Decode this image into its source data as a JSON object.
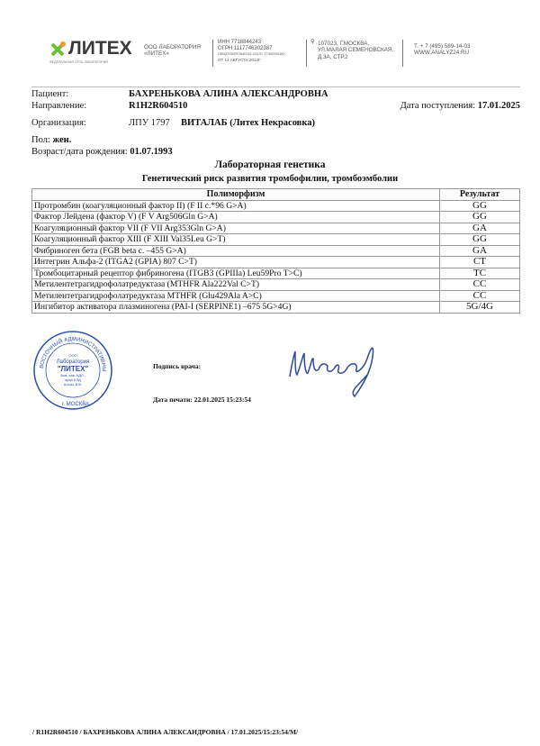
{
  "header": {
    "logo_text": "ЛИТЕХ",
    "logo_tagline": "ФЕДЕРАЛЬНАЯ СЕТЬ ЛАБОРАТОРИЙ",
    "company": [
      "ООО ЛАБОРАТОРИЯ",
      "«ЛИТЕХ»"
    ],
    "registration": [
      "ИНН 7718844243",
      "ОГРН 1117746302387",
      "ЛИЦЕНЗИЯ №ЛО41-01137-77/00294160",
      "ОТ 13 АВГУСТА 2014Г."
    ],
    "address": [
      "107023, Г.МОСКВА,",
      "УЛ.МАЛАЯ СЕМЕНОВСКАЯ,",
      "Д.3А, СТР.2"
    ],
    "contacts": [
      "Т. + 7 (495) 589-14-03",
      "WWW.ANALYZ24.RU"
    ],
    "brand_color": "#6abf3b"
  },
  "patient": {
    "patient_label": "Пациент:",
    "patient_value": "БАХРЕНЬКОВА АЛИНА АЛЕКСАНДРОВНА",
    "referral_label": "Направление:",
    "referral_value": "R1H2R604510",
    "received_label": "Дата поступления:",
    "received_value": "17.01.2025",
    "org_label": "Организация:",
    "org_code": "ЛПУ 1797",
    "org_value": "ВИТАЛАБ (Литех Некрасовка)",
    "sex_label": "Пол:",
    "sex_value": "жен.",
    "dob_label": "Возраст/дата рождения:",
    "dob_value": "01.07.1993"
  },
  "section_title": "Лабораторная генетика",
  "test_title": "Генетический риск развития тромбофилии, тромбоэмболии",
  "table": {
    "headers": [
      "Полиморфизм",
      "Результат"
    ],
    "rows": [
      [
        "Протромбин (коагуляционный фактор II)  (F II c.*96 G>A)",
        "GG"
      ],
      [
        "Фактор Лейдена (фактор V)  (F V Arg506Gln G>A)",
        "GG"
      ],
      [
        "Коагуляционный фактор VII  (F VII Arg353Gln G>A)",
        "GA"
      ],
      [
        "Коагуляционный фактор XIII  (F XIII  Val35Leu G>T)",
        "GG"
      ],
      [
        "Фибриноген бета  (FGB beta c. –455 G>A)",
        "GA"
      ],
      [
        "Интегрин Альфа-2  (ITGA2 (GPIA) 807 C>T)",
        "CT"
      ],
      [
        "Тромбоцитарный рецептор фибриногена (ITGB3 (GPIIIa) Leu59Pro T>C)",
        "TC"
      ],
      [
        "Метилентетрагидрофолатредуктаза  (MTHFR Ala222Val C>T)",
        "CC"
      ],
      [
        "Метилентетрагидрофолатредуктаза MTHFR (Glu429Ala A>C)",
        "CC"
      ],
      [
        "Ингибитор  активатора плазминогена  (PAI-I (SERPINE1) –675 5G>4G)",
        "5G/4G"
      ]
    ]
  },
  "stamp": {
    "text": [
      "ВОСТОЧНЫЙ АДМИНИСТРАТИВНЫЙ ОКРУГ",
      "ООО",
      "Лаборатория",
      "\"ЛИТЕХ\"",
      "Зам. зав. КДЛ -",
      "врач КЛД",
      "Штоко В.В.",
      "г. МОСКВА"
    ],
    "color": "#2a4fa8"
  },
  "signature_label": "Подпись врача:",
  "print_date_label": "Дата печати:",
  "print_date_value": "22.01.2025 15:23:54",
  "footer": "/ R1H2R604510 / БАХРЕНЬКОВА АЛИНА АЛЕКСАНДРОВНА / 17.01.2025/15:23:54/M/"
}
